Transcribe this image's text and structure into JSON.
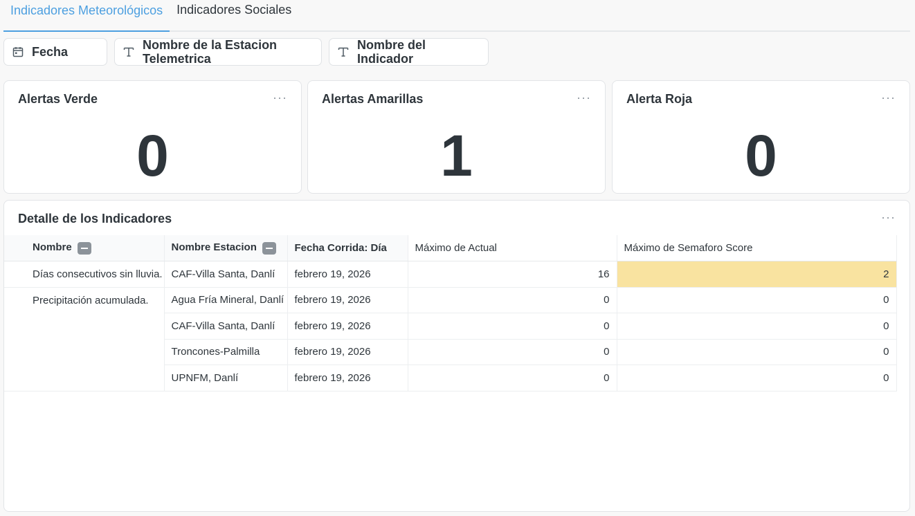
{
  "tabs": [
    {
      "label": "Indicadores Meteorológicos",
      "active": true
    },
    {
      "label": "Indicadores Sociales",
      "active": false
    }
  ],
  "filters": [
    {
      "label": "Fecha",
      "icon": "calendar-icon"
    },
    {
      "label": "Nombre de la Estacion Telemetrica",
      "icon": "text-type-icon"
    },
    {
      "label": "Nombre del Indicador",
      "icon": "text-type-icon"
    }
  ],
  "cards": [
    {
      "title": "Alertas Verde",
      "value": "0"
    },
    {
      "title": "Alertas Amarillas",
      "value": "1"
    },
    {
      "title": "Alerta Roja",
      "value": "0"
    }
  ],
  "menu_glyph": "···",
  "table": {
    "title": "Detalle de los Indicadores",
    "headers": [
      "Nombre",
      "Nombre Estacion",
      "Fecha Corrida: Día",
      "Máximo de Actual",
      "Máximo de Semaforo Score"
    ],
    "groups": [
      {
        "nombre": "Días consecutivos sin lluvia.",
        "rows": [
          {
            "estacion": "CAF-Villa Santa, Danlí",
            "fecha": "febrero 19, 2026",
            "actual": "16",
            "score": "2",
            "highlight": true
          }
        ]
      },
      {
        "nombre": "Precipitación acumulada.",
        "rows": [
          {
            "estacion": "Agua Fría Mineral, Danlí",
            "fecha": "febrero 19, 2026",
            "actual": "0",
            "score": "0"
          },
          {
            "estacion": "CAF-Villa Santa, Danlí",
            "fecha": "febrero 19, 2026",
            "actual": "0",
            "score": "0"
          },
          {
            "estacion": "Troncones-Palmilla",
            "fecha": "febrero 19, 2026",
            "actual": "0",
            "score": "0"
          },
          {
            "estacion": "UPNFM, Danlí",
            "fecha": "febrero 19, 2026",
            "actual": "0",
            "score": "0"
          }
        ]
      }
    ]
  },
  "colors": {
    "accent": "#4c9fe0",
    "highlight": "#f9e3a0"
  }
}
